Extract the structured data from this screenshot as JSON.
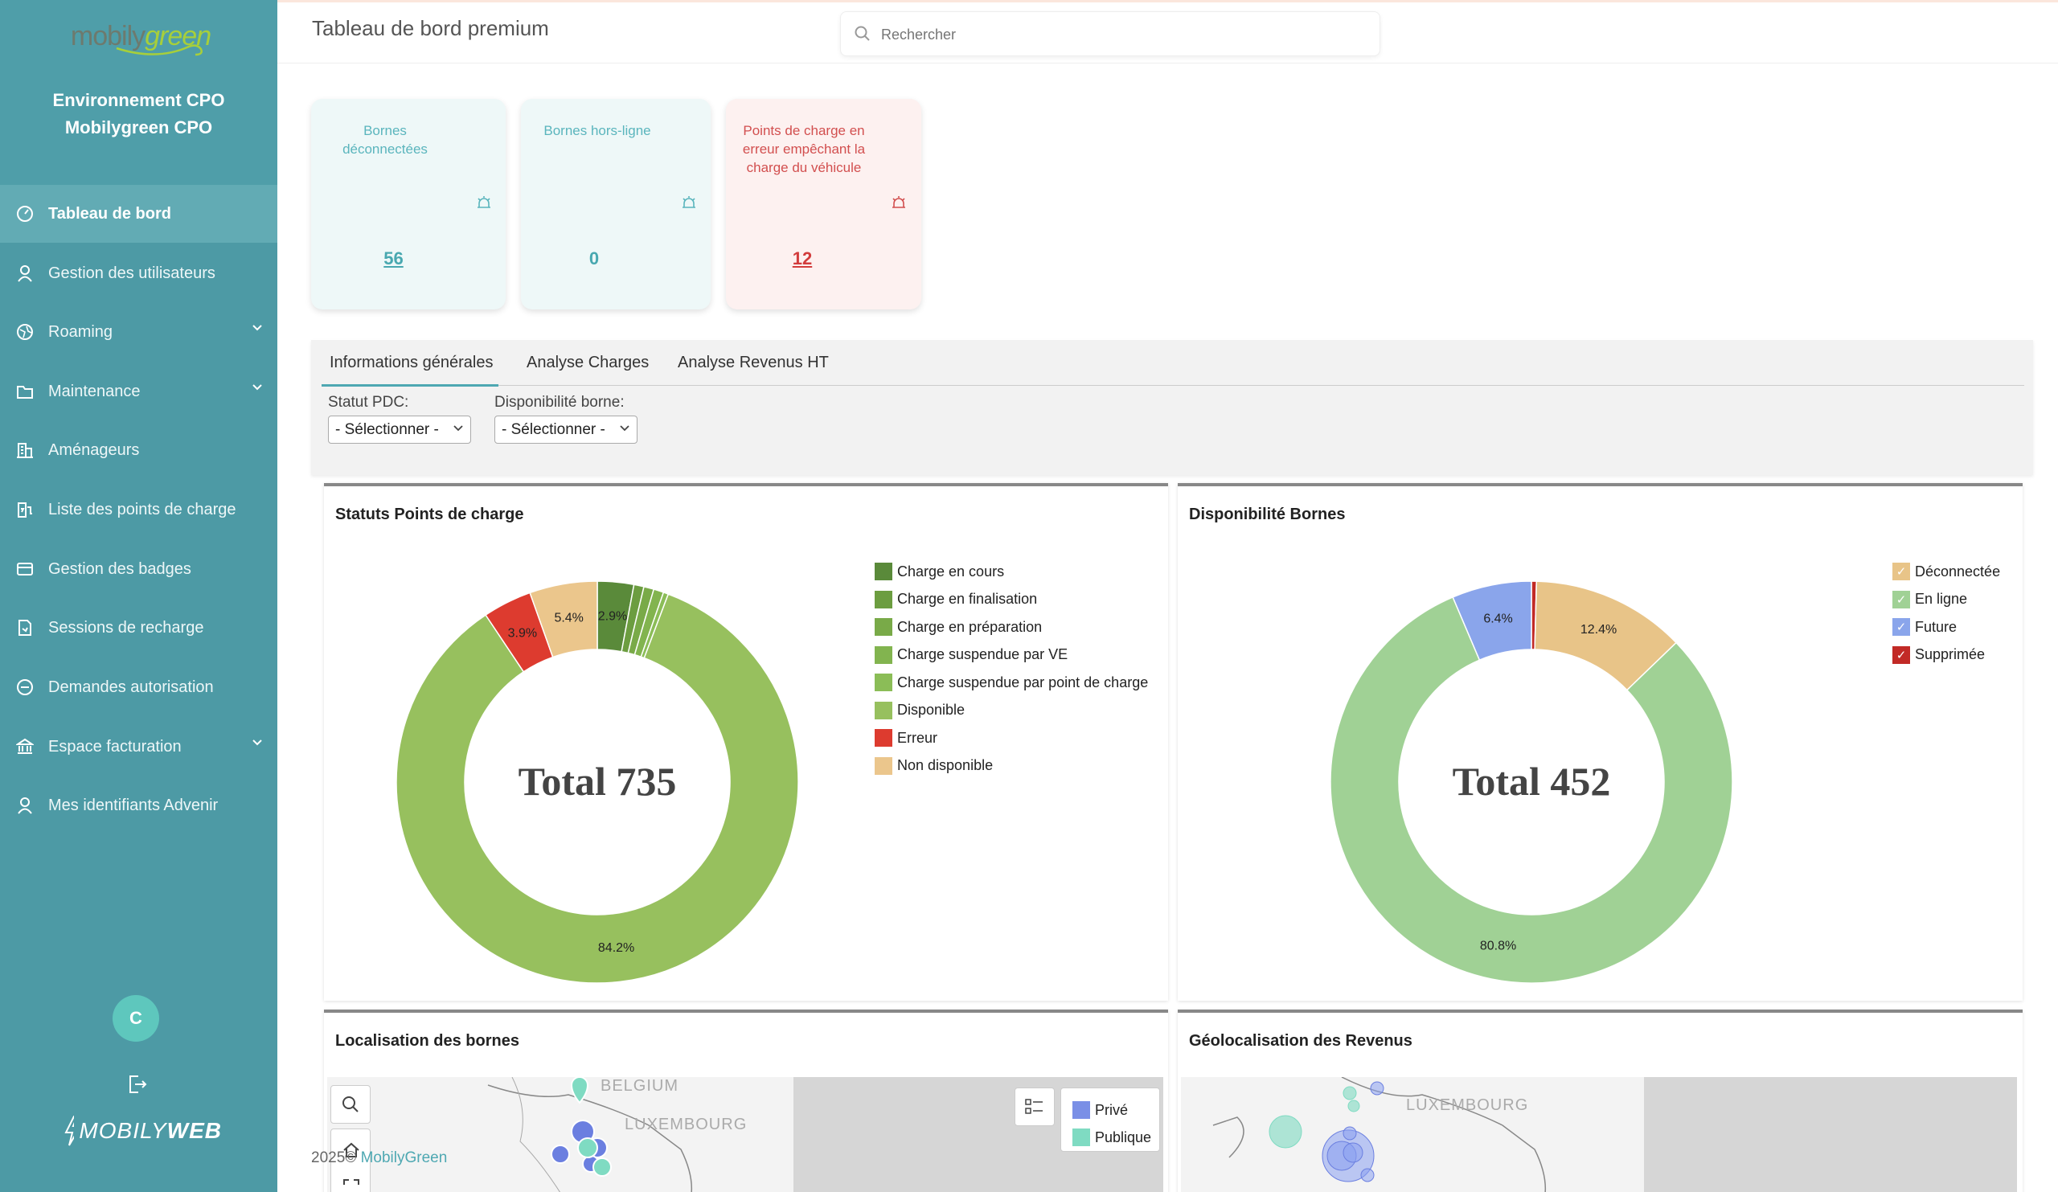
{
  "app": {
    "logo_text_1": "mobily",
    "logo_text_2": "green",
    "env_line1": "Environnement CPO",
    "env_line2": "Mobilygreen CPO",
    "footer_logo_1": "MOBILY",
    "footer_logo_2": "WEB",
    "avatar_initial": "C",
    "copyright_year": "2025",
    "copyright_brand": "MobilyGreen"
  },
  "sidebar": {
    "items": [
      {
        "label": "Tableau de bord",
        "icon": "gauge-icon",
        "active": true
      },
      {
        "label": "Gestion des utilisateurs",
        "icon": "user-icon"
      },
      {
        "label": "Roaming",
        "icon": "globe-icon",
        "chevron": true
      },
      {
        "label": "Maintenance",
        "icon": "folder-icon",
        "chevron": true
      },
      {
        "label": "Aménageurs",
        "icon": "building-icon"
      },
      {
        "label": "Liste des points de charge",
        "icon": "charger-icon"
      },
      {
        "label": "Gestion des badges",
        "icon": "card-icon"
      },
      {
        "label": "Sessions de recharge",
        "icon": "document-icon"
      },
      {
        "label": "Demandes autorisation",
        "icon": "minus-circle-icon"
      },
      {
        "label": "Espace facturation",
        "icon": "bank-icon",
        "chevron": true
      },
      {
        "label": "Mes identifiants Advenir",
        "icon": "user-icon"
      }
    ]
  },
  "header": {
    "title": "Tableau de bord premium",
    "search_placeholder": "Rechercher"
  },
  "kpis": [
    {
      "label": "Bornes déconnectées",
      "value": "56"
    },
    {
      "label": "Bornes hors-ligne",
      "value": "0"
    },
    {
      "label": "Points de charge en erreur empêchant la charge du véhicule",
      "value": "12"
    }
  ],
  "tabs": [
    "Informations générales",
    "Analyse Charges",
    "Analyse Revenus HT"
  ],
  "filters": {
    "statut_label": "Statut PDC:",
    "statut_value": "- Sélectionner -",
    "dispo_label": "Disponibilité borne:",
    "dispo_value": "- Sélectionner -"
  },
  "colors": {
    "primary": "#4d9aa5",
    "accent": "#4ea8b2",
    "error": "#d23c3c"
  },
  "chart_data": [
    {
      "type": "pie",
      "title": "Statuts Points de charge",
      "center_label": "Total 735",
      "categories": [
        "Charge en cours",
        "Charge en finalisation",
        "Charge en préparation",
        "Charge suspendue par VE",
        "Charge suspendue par point de charge",
        "Disponible",
        "Erreur",
        "Non disponible"
      ],
      "values": [
        2.9,
        0.8,
        0.8,
        0.8,
        0.4,
        84.2,
        3.9,
        5.4
      ],
      "value_labels": [
        "2.9%",
        "",
        "",
        "",
        "",
        "84.2%",
        "3.9%",
        "5.4%"
      ],
      "colors": [
        "#5a8a3a",
        "#6c9d40",
        "#79aa48",
        "#82b44f",
        "#8bbd57",
        "#97c05e",
        "#dd3b2f",
        "#ebc68c"
      ]
    },
    {
      "type": "pie",
      "title": "Disponibilité Bornes",
      "center_label": "Total 452",
      "categories": [
        "Déconnectée",
        "En ligne",
        "Future",
        "Supprimée"
      ],
      "values": [
        12.4,
        80.8,
        6.4,
        0.4
      ],
      "value_labels": [
        "12.4%",
        "80.8%",
        "6.4%",
        ""
      ],
      "colors": [
        "#e8c488",
        "#a0d195",
        "#8aa5eb",
        "#c22a26"
      ]
    }
  ],
  "map1": {
    "title": "Localisation des bornes",
    "label_belgium": "BELGIUM",
    "label_luxembourg": "LUXEMBOURG",
    "legend": [
      {
        "label": "Privé",
        "color": "#7a8fe6"
      },
      {
        "label": "Publique",
        "color": "#7fdbc2"
      }
    ]
  },
  "map2": {
    "title": "Géolocalisation des Revenus",
    "label_luxembourg": "LUXEMBOURG"
  }
}
